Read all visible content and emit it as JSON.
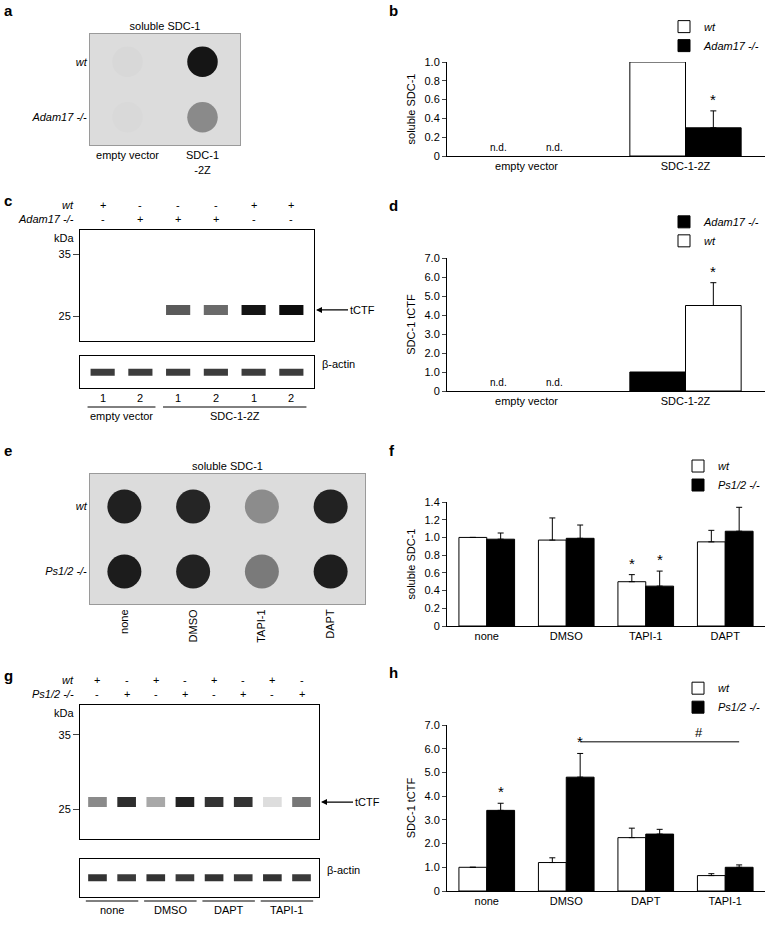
{
  "chart_data": [
    {
      "panel": "a",
      "type": "dot_blot",
      "title": "soluble SDC-1",
      "rows": [
        "wt",
        "Adam17 -/-"
      ],
      "columns": [
        "empty vector",
        "SDC-1\n-2Z"
      ],
      "colors": [
        [
          "#d8d8d8",
          "#151515"
        ],
        [
          "#d9d9d9",
          "#8a8a8a"
        ]
      ]
    },
    {
      "panel": "b",
      "type": "bar",
      "ylabel": "soluble SDC-1",
      "categories": [
        "empty vector",
        "SDC-1-2Z"
      ],
      "series": [
        {
          "name": "wt",
          "color": "#ffffff",
          "values": [
            null,
            1.0
          ]
        },
        {
          "name": "Adam17 -/-",
          "color": "#000000",
          "values": [
            null,
            0.3
          ],
          "errors": [
            null,
            0.18
          ]
        }
      ],
      "ylim": [
        0,
        1
      ],
      "yticks": [
        0,
        0.2,
        0.4,
        0.6,
        0.8,
        {
          "value": 1,
          "label": "1.0"
        }
      ],
      "legend": "top right",
      "annotations": [
        {
          "text": "n.d.",
          "x": 0,
          "series": 0
        },
        {
          "text": "n.d.",
          "x": 0,
          "series": 1
        },
        {
          "text": "*",
          "x": 1,
          "series": 1
        }
      ]
    },
    {
      "panel": "c",
      "type": "western_blot",
      "genotypes": [
        {
          "name": "wt",
          "signs": [
            "+",
            "-",
            "-",
            "-",
            "+",
            "+"
          ]
        },
        {
          "name": "Adam17 -/-",
          "signs": [
            "-",
            "+",
            "+",
            "+",
            "-",
            "-"
          ]
        }
      ],
      "ylabel": "kDa",
      "ylim": [
        21,
        39
      ],
      "yticks": [
        25,
        35
      ],
      "band_label": "tCTF",
      "band_kda": 26,
      "band_colors": [
        null,
        null,
        "#5a5a5a",
        "#6a6a6a",
        "#141414",
        "#0c0c0c"
      ],
      "loading_label": "β-actin",
      "loading_colors": [
        "#3c3c3c",
        "#3c3c3c",
        "#3c3c3c",
        "#3c3c3c",
        "#3c3c3c",
        "#3c3c3c"
      ],
      "lane_labels": [
        "1",
        "2",
        "1",
        "2",
        "1",
        "2"
      ],
      "groups": [
        {
          "label": "empty vector",
          "from": 0,
          "to": 1
        },
        {
          "label": "SDC-1-2Z",
          "from": 2,
          "to": 5
        }
      ]
    },
    {
      "panel": "d",
      "type": "bar",
      "ylabel": "SDC-1 tCTF",
      "categories": [
        "empty vector",
        "SDC-1-2Z"
      ],
      "series": [
        {
          "name": "Adam17 -/-",
          "color": "#000000",
          "values": [
            null,
            1.0
          ]
        },
        {
          "name": "wt",
          "color": "#ffffff",
          "values": [
            null,
            4.5
          ],
          "errors": [
            null,
            1.2
          ]
        }
      ],
      "ylim": [
        0,
        7
      ],
      "yticks": [
        0,
        {
          "value": 1,
          "label": "1.0"
        },
        {
          "value": 2,
          "label": "2.0"
        },
        {
          "value": 3,
          "label": "3.0"
        },
        {
          "value": 4,
          "label": "4.0"
        },
        {
          "value": 5,
          "label": "5.0"
        },
        {
          "value": 6,
          "label": "6.0"
        },
        {
          "value": 7,
          "label": "7.0"
        }
      ],
      "legend": "top right",
      "annotations": [
        {
          "text": "n.d.",
          "x": 0,
          "series": 0
        },
        {
          "text": "n.d.",
          "x": 0,
          "series": 1
        },
        {
          "text": "*",
          "x": 1,
          "series": 1
        }
      ]
    },
    {
      "panel": "e",
      "type": "dot_blot",
      "title": "soluble SDC-1",
      "rows": [
        "wt",
        "Ps1/2 -/-"
      ],
      "columns": [
        "none",
        "DMSO",
        "TAPI-1",
        "DAPT"
      ],
      "colors": [
        [
          "#202020",
          "#252525",
          "#8c8c8c",
          "#222222"
        ],
        [
          "#1c1c1c",
          "#222222",
          "#7a7a7a",
          "#1e1e1e"
        ]
      ]
    },
    {
      "panel": "f",
      "type": "bar",
      "ylabel": "soluble SDC-1",
      "categories": [
        "none",
        "DMSO",
        "TAPI-1",
        "DAPT"
      ],
      "series": [
        {
          "name": "wt",
          "color": "#ffffff",
          "values": [
            1.0,
            0.97,
            0.5,
            0.95
          ],
          "errors": [
            null,
            0.25,
            0.08,
            0.13
          ]
        },
        {
          "name": "Ps1/2 -/-",
          "color": "#000000",
          "values": [
            0.98,
            0.99,
            0.45,
            1.07
          ],
          "errors": [
            0.07,
            0.15,
            0.17,
            0.27
          ]
        }
      ],
      "ylim": [
        0,
        1.4
      ],
      "yticks": [
        0,
        0.2,
        0.4,
        0.6,
        0.8,
        {
          "value": 1,
          "label": "1.0"
        },
        1.2,
        1.4
      ],
      "legend": "top right",
      "annotations": [
        {
          "text": "*",
          "x": 2,
          "series": 0
        },
        {
          "text": "*",
          "x": 2,
          "series": 1
        }
      ]
    },
    {
      "panel": "g",
      "type": "western_blot",
      "genotypes": [
        {
          "name": "wt",
          "signs": [
            "+",
            "-",
            "+",
            "-",
            "+",
            "-",
            "+",
            "-"
          ]
        },
        {
          "name": "Ps1/2 -/-",
          "signs": [
            "-",
            "+",
            "-",
            "+",
            "-",
            "+",
            "-",
            "+"
          ]
        }
      ],
      "ylabel": "kDa",
      "ylim": [
        21,
        39
      ],
      "yticks": [
        25,
        35
      ],
      "band_label": "tCTF",
      "band_kda": 26,
      "band_colors": [
        "#8a8a8a",
        "#2e2e2e",
        "#a8a8a8",
        "#222222",
        "#333333",
        "#333333",
        "#dddddd",
        "#777777"
      ],
      "loading_label": "β-actin",
      "loading_colors": [
        "#333333",
        "#3a3a3a",
        "#333333",
        "#3a3a3a",
        "#333333",
        "#3a3a3a",
        "#333333",
        "#3a3a3a"
      ],
      "groups": [
        {
          "label": "none",
          "from": 0,
          "to": 1
        },
        {
          "label": "DMSO",
          "from": 2,
          "to": 3
        },
        {
          "label": "DAPT",
          "from": 4,
          "to": 5
        },
        {
          "label": "TAPI-1",
          "from": 6,
          "to": 7
        }
      ]
    },
    {
      "panel": "h",
      "type": "bar",
      "ylabel": "SDC-1 tCTF",
      "categories": [
        "none",
        "DMSO",
        "DAPT",
        "TAPI-1"
      ],
      "series": [
        {
          "name": "wt",
          "color": "#ffffff",
          "values": [
            1.0,
            1.2,
            2.25,
            0.65
          ],
          "errors": [
            null,
            0.2,
            0.4,
            0.08
          ]
        },
        {
          "name": "Ps1/2 -/-",
          "color": "#000000",
          "values": [
            3.4,
            4.8,
            2.4,
            1.0
          ],
          "errors": [
            0.3,
            1.0,
            0.2,
            0.1
          ]
        }
      ],
      "ylim": [
        0,
        7
      ],
      "yticks": [
        0,
        {
          "value": 1,
          "label": "1.0"
        },
        {
          "value": 2,
          "label": "2.0"
        },
        {
          "value": 3,
          "label": "3.0"
        },
        {
          "value": 4,
          "label": "4.0"
        },
        {
          "value": 5,
          "label": "5.0"
        },
        {
          "value": 6,
          "label": "6.0"
        },
        {
          "value": 7,
          "label": "7.0"
        }
      ],
      "legend": "top right",
      "annotations": [
        {
          "text": "*",
          "x": 0,
          "series": 1
        },
        {
          "text": "*",
          "x": 1,
          "series": 1
        }
      ],
      "bracket": {
        "text": "#",
        "from": 1,
        "to": 3,
        "series": 1
      }
    }
  ]
}
